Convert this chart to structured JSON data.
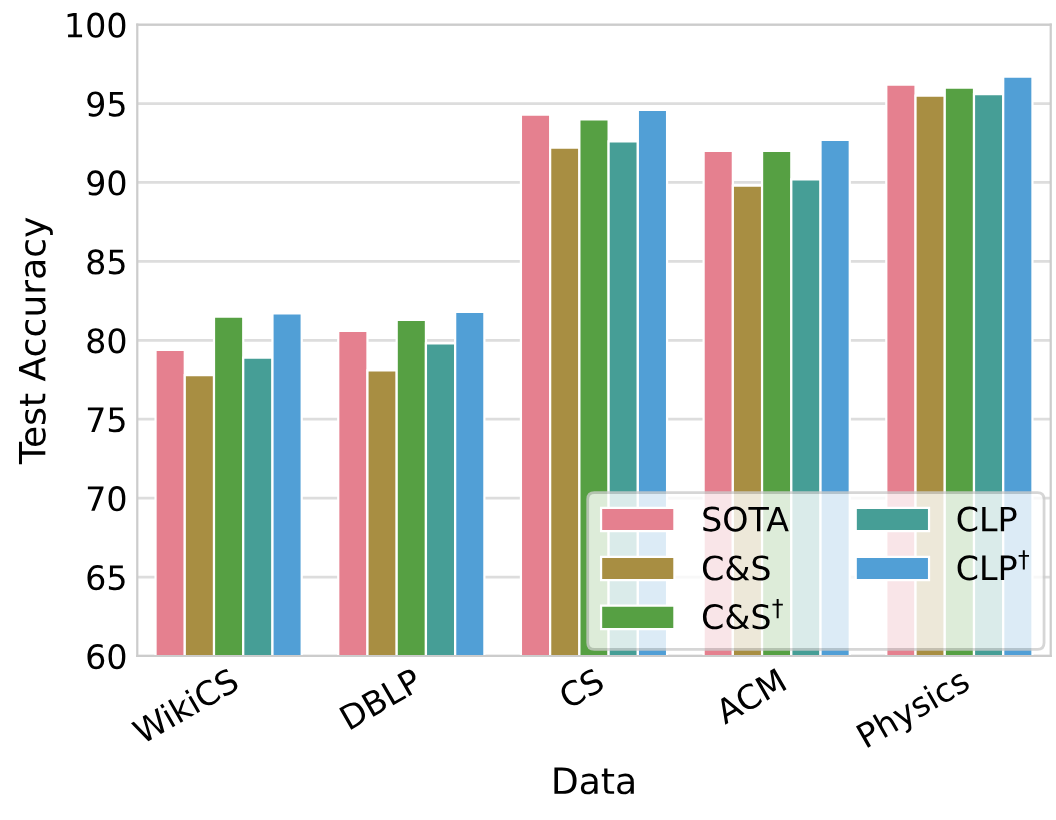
{
  "chart_data": {
    "type": "bar",
    "xlabel": "Data",
    "ylabel": "Test Accuracy",
    "categories": [
      "WikiCS",
      "DBLP",
      "CS",
      "ACM",
      "Physics"
    ],
    "series": [
      {
        "name": "SOTA",
        "color": "#e5808f",
        "values": [
          79.4,
          80.6,
          94.3,
          92.0,
          96.2
        ]
      },
      {
        "name": "C&S",
        "color": "#a88e42",
        "values": [
          77.8,
          78.1,
          92.2,
          89.8,
          95.5
        ]
      },
      {
        "name": "C&S$^{†}$",
        "color": "#56a043",
        "values": [
          81.5,
          81.3,
          94.0,
          92.0,
          96.0
        ]
      },
      {
        "name": "CLP",
        "color": "#469e96",
        "values": [
          78.9,
          79.8,
          92.6,
          90.2,
          95.6
        ]
      },
      {
        "name": "CLP$^{†}$",
        "color": "#519fd6",
        "values": [
          81.7,
          81.8,
          94.6,
          92.7,
          96.7
        ]
      }
    ],
    "ylim": [
      60,
      100
    ],
    "yticks": [
      60,
      65,
      70,
      75,
      80,
      85,
      90,
      95,
      100
    ],
    "grid": "y",
    "legend": "bottom right"
  }
}
